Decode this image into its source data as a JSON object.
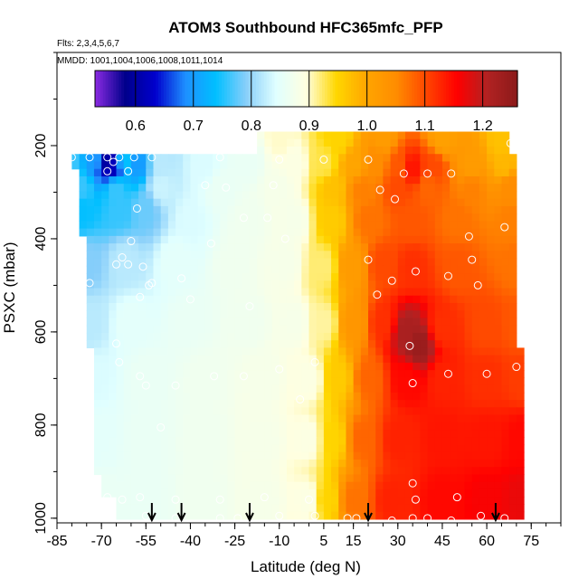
{
  "chart_data": {
    "type": "heatmap",
    "title": "ATOM3 Southbound HFC365mfc_PFP",
    "flights_label": "Flts: 2,3,4,5,6,7",
    "dates_label": "MMDD: 1001,1004,1006,1008,1011,1014",
    "xlabel": "Latitude (deg N)",
    "ylabel": "PSXC (mbar)",
    "xlim": [
      -85,
      85
    ],
    "ylim": [
      1010,
      0
    ],
    "x_ticks": [
      -85,
      -70,
      -55,
      -40,
      -25,
      -10,
      5,
      15,
      30,
      45,
      60,
      75
    ],
    "x_tick_labels": [
      "-85",
      "-70",
      "-55",
      "-40",
      "-25",
      "-10",
      "5",
      "15",
      "30",
      "45",
      "60",
      "75"
    ],
    "y_ticks": [
      200,
      400,
      600,
      800,
      1000
    ],
    "y_tick_labels": [
      "200",
      "400",
      "600",
      "800",
      "1000"
    ],
    "colorbar": {
      "min": 0.53,
      "max": 1.26,
      "ticks": [
        0.6,
        0.7,
        0.8,
        0.9,
        1.0,
        1.1,
        1.2
      ],
      "tick_labels": [
        "0.6",
        "0.7",
        "0.8",
        "0.9",
        "1.0",
        "1.1",
        "1.2"
      ],
      "colors": [
        "#8b2be2",
        "#00008b",
        "#0000cd",
        "#1e90ff",
        "#00bfff",
        "#87cefa",
        "#e0ffff",
        "#ffffe0",
        "#ffd700",
        "#ffa500",
        "#ff8c00",
        "#ff4500",
        "#ff0000",
        "#b22222",
        "#8b1a1a"
      ]
    },
    "pressure_bands": [
      {
        "p_top": 215,
        "p_bottom": 255,
        "lat_min": -79,
        "lat_max": 69
      },
      {
        "p_top": 255,
        "p_bottom": 320,
        "lat_min": -78,
        "lat_max": 70
      },
      {
        "p_top": 320,
        "p_bottom": 400,
        "lat_min": -77,
        "lat_max": 70
      },
      {
        "p_top": 400,
        "p_bottom": 520,
        "lat_min": -75,
        "lat_max": 71
      },
      {
        "p_top": 520,
        "p_bottom": 640,
        "lat_min": -74,
        "lat_max": 71
      },
      {
        "p_top": 640,
        "p_bottom": 760,
        "lat_min": -73,
        "lat_max": 72
      },
      {
        "p_top": 760,
        "p_bottom": 900,
        "lat_min": -72,
        "lat_max": 72
      },
      {
        "p_top": 900,
        "p_bottom": 1010,
        "lat_min": -71,
        "lat_max": 72
      }
    ],
    "upper_band": {
      "p_top": 170,
      "p_bottom": 215,
      "lat_min": -17,
      "lat_max": 68
    },
    "blank_corner": {
      "lat_min": -71,
      "lat_max": -66,
      "p_top": 960,
      "p_bottom": 1010
    },
    "field_points": [
      {
        "lat": -80,
        "p": 230,
        "v": 0.76
      },
      {
        "lat": -73,
        "p": 230,
        "v": 0.7
      },
      {
        "lat": -68,
        "p": 235,
        "v": 0.6
      },
      {
        "lat": -66,
        "p": 245,
        "v": 0.62
      },
      {
        "lat": -62,
        "p": 235,
        "v": 0.74
      },
      {
        "lat": -58,
        "p": 240,
        "v": 0.7
      },
      {
        "lat": -50,
        "p": 240,
        "v": 0.82
      },
      {
        "lat": -35,
        "p": 245,
        "v": 0.84
      },
      {
        "lat": -20,
        "p": 230,
        "v": 0.86
      },
      {
        "lat": -5,
        "p": 240,
        "v": 0.89
      },
      {
        "lat": 5,
        "p": 240,
        "v": 0.93
      },
      {
        "lat": 15,
        "p": 240,
        "v": 1.0
      },
      {
        "lat": 23,
        "p": 235,
        "v": 1.05
      },
      {
        "lat": 30,
        "p": 245,
        "v": 1.09
      },
      {
        "lat": 35,
        "p": 250,
        "v": 1.14
      },
      {
        "lat": 42,
        "p": 245,
        "v": 1.1
      },
      {
        "lat": 55,
        "p": 245,
        "v": 1.02
      },
      {
        "lat": 66,
        "p": 240,
        "v": 0.98
      },
      {
        "lat": -10,
        "p": 185,
        "v": 0.9
      },
      {
        "lat": 10,
        "p": 185,
        "v": 0.95
      },
      {
        "lat": 25,
        "p": 185,
        "v": 1.02
      },
      {
        "lat": 45,
        "p": 185,
        "v": 1.01
      },
      {
        "lat": 65,
        "p": 190,
        "v": 0.97
      },
      {
        "lat": -77,
        "p": 290,
        "v": 0.76
      },
      {
        "lat": -65,
        "p": 295,
        "v": 0.76
      },
      {
        "lat": -50,
        "p": 290,
        "v": 0.83
      },
      {
        "lat": -30,
        "p": 290,
        "v": 0.86
      },
      {
        "lat": -10,
        "p": 290,
        "v": 0.88
      },
      {
        "lat": 8,
        "p": 290,
        "v": 0.97
      },
      {
        "lat": 18,
        "p": 295,
        "v": 1.06
      },
      {
        "lat": 30,
        "p": 290,
        "v": 1.1
      },
      {
        "lat": 40,
        "p": 290,
        "v": 1.08
      },
      {
        "lat": 55,
        "p": 290,
        "v": 1.06
      },
      {
        "lat": 68,
        "p": 290,
        "v": 1.05
      },
      {
        "lat": -77,
        "p": 335,
        "v": 0.74
      },
      {
        "lat": -64,
        "p": 335,
        "v": 0.76
      },
      {
        "lat": -55,
        "p": 335,
        "v": 0.78
      },
      {
        "lat": -40,
        "p": 360,
        "v": 0.84
      },
      {
        "lat": -20,
        "p": 360,
        "v": 0.87
      },
      {
        "lat": -5,
        "p": 360,
        "v": 0.88
      },
      {
        "lat": 8,
        "p": 360,
        "v": 0.96
      },
      {
        "lat": 20,
        "p": 360,
        "v": 1.07
      },
      {
        "lat": 35,
        "p": 360,
        "v": 1.09
      },
      {
        "lat": 50,
        "p": 360,
        "v": 1.07
      },
      {
        "lat": 68,
        "p": 360,
        "v": 1.06
      },
      {
        "lat": -75,
        "p": 450,
        "v": 0.79
      },
      {
        "lat": -62,
        "p": 450,
        "v": 0.82
      },
      {
        "lat": -45,
        "p": 450,
        "v": 0.85
      },
      {
        "lat": -25,
        "p": 450,
        "v": 0.87
      },
      {
        "lat": -8,
        "p": 450,
        "v": 0.88
      },
      {
        "lat": 5,
        "p": 460,
        "v": 0.92
      },
      {
        "lat": 14,
        "p": 460,
        "v": 1.02
      },
      {
        "lat": 25,
        "p": 455,
        "v": 1.1
      },
      {
        "lat": 35,
        "p": 460,
        "v": 1.12
      },
      {
        "lat": 50,
        "p": 460,
        "v": 1.09
      },
      {
        "lat": 70,
        "p": 450,
        "v": 1.07
      },
      {
        "lat": -74,
        "p": 580,
        "v": 0.82
      },
      {
        "lat": -60,
        "p": 580,
        "v": 0.85
      },
      {
        "lat": -40,
        "p": 580,
        "v": 0.86
      },
      {
        "lat": -20,
        "p": 580,
        "v": 0.87
      },
      {
        "lat": -5,
        "p": 580,
        "v": 0.88
      },
      {
        "lat": 5,
        "p": 580,
        "v": 0.91
      },
      {
        "lat": 15,
        "p": 580,
        "v": 1.03
      },
      {
        "lat": 25,
        "p": 580,
        "v": 1.12
      },
      {
        "lat": 33,
        "p": 600,
        "v": 1.22
      },
      {
        "lat": 37,
        "p": 630,
        "v": 1.24
      },
      {
        "lat": 45,
        "p": 590,
        "v": 1.12
      },
      {
        "lat": 60,
        "p": 590,
        "v": 1.1
      },
      {
        "lat": 71,
        "p": 590,
        "v": 1.09
      },
      {
        "lat": -72,
        "p": 700,
        "v": 0.84
      },
      {
        "lat": -55,
        "p": 700,
        "v": 0.86
      },
      {
        "lat": -35,
        "p": 700,
        "v": 0.87
      },
      {
        "lat": -15,
        "p": 700,
        "v": 0.88
      },
      {
        "lat": 0,
        "p": 700,
        "v": 0.89
      },
      {
        "lat": 10,
        "p": 700,
        "v": 0.96
      },
      {
        "lat": 20,
        "p": 700,
        "v": 1.08
      },
      {
        "lat": 33,
        "p": 700,
        "v": 1.15
      },
      {
        "lat": 45,
        "p": 700,
        "v": 1.13
      },
      {
        "lat": 60,
        "p": 700,
        "v": 1.12
      },
      {
        "lat": 72,
        "p": 700,
        "v": 1.11
      },
      {
        "lat": -71,
        "p": 830,
        "v": 0.85
      },
      {
        "lat": -55,
        "p": 830,
        "v": 0.86
      },
      {
        "lat": -35,
        "p": 830,
        "v": 0.87
      },
      {
        "lat": -15,
        "p": 830,
        "v": 0.88
      },
      {
        "lat": 0,
        "p": 830,
        "v": 0.89
      },
      {
        "lat": 8,
        "p": 830,
        "v": 0.95
      },
      {
        "lat": 18,
        "p": 830,
        "v": 1.08
      },
      {
        "lat": 30,
        "p": 830,
        "v": 1.13
      },
      {
        "lat": 45,
        "p": 830,
        "v": 1.14
      },
      {
        "lat": 60,
        "p": 830,
        "v": 1.14
      },
      {
        "lat": 72,
        "p": 830,
        "v": 1.15
      },
      {
        "lat": -70,
        "p": 960,
        "v": 0.86
      },
      {
        "lat": -55,
        "p": 960,
        "v": 0.86
      },
      {
        "lat": -35,
        "p": 960,
        "v": 0.87
      },
      {
        "lat": -15,
        "p": 960,
        "v": 0.88
      },
      {
        "lat": 0,
        "p": 960,
        "v": 0.89
      },
      {
        "lat": 6,
        "p": 960,
        "v": 0.95
      },
      {
        "lat": 15,
        "p": 960,
        "v": 1.07
      },
      {
        "lat": 28,
        "p": 960,
        "v": 1.13
      },
      {
        "lat": 45,
        "p": 960,
        "v": 1.15
      },
      {
        "lat": 60,
        "p": 960,
        "v": 1.16
      },
      {
        "lat": 72,
        "p": 960,
        "v": 1.17
      }
    ],
    "observation_circles": [
      {
        "lat": -80,
        "p": 225
      },
      {
        "lat": -74,
        "p": 225
      },
      {
        "lat": -68,
        "p": 225
      },
      {
        "lat": -66,
        "p": 235
      },
      {
        "lat": -64,
        "p": 225
      },
      {
        "lat": -59,
        "p": 225
      },
      {
        "lat": -53,
        "p": 225
      },
      {
        "lat": -61,
        "p": 255
      },
      {
        "lat": -68,
        "p": 255
      },
      {
        "lat": -30,
        "p": 225
      },
      {
        "lat": -10,
        "p": 230
      },
      {
        "lat": 5,
        "p": 230
      },
      {
        "lat": 20,
        "p": 230
      },
      {
        "lat": 68,
        "p": 195
      },
      {
        "lat": 32,
        "p": 260
      },
      {
        "lat": 40,
        "p": 260
      },
      {
        "lat": 48,
        "p": 260
      },
      {
        "lat": -58,
        "p": 335
      },
      {
        "lat": -35,
        "p": 285
      },
      {
        "lat": -28,
        "p": 290
      },
      {
        "lat": -12,
        "p": 285
      },
      {
        "lat": -14,
        "p": 355
      },
      {
        "lat": -22,
        "p": 355
      },
      {
        "lat": 24,
        "p": 295
      },
      {
        "lat": 29,
        "p": 315
      },
      {
        "lat": -60,
        "p": 405
      },
      {
        "lat": -63,
        "p": 440
      },
      {
        "lat": -65,
        "p": 455
      },
      {
        "lat": -61,
        "p": 455
      },
      {
        "lat": -56,
        "p": 460
      },
      {
        "lat": -54,
        "p": 500
      },
      {
        "lat": -53,
        "p": 495
      },
      {
        "lat": -57,
        "p": 525
      },
      {
        "lat": -74,
        "p": 495
      },
      {
        "lat": -43,
        "p": 485
      },
      {
        "lat": -33,
        "p": 410
      },
      {
        "lat": -8,
        "p": 400
      },
      {
        "lat": 54,
        "p": 395
      },
      {
        "lat": 66,
        "p": 375
      },
      {
        "lat": 20,
        "p": 445
      },
      {
        "lat": 23,
        "p": 520
      },
      {
        "lat": 36,
        "p": 470
      },
      {
        "lat": 47,
        "p": 480
      },
      {
        "lat": 55,
        "p": 445
      },
      {
        "lat": 57,
        "p": 500
      },
      {
        "lat": 28,
        "p": 490
      },
      {
        "lat": -40,
        "p": 530
      },
      {
        "lat": -20,
        "p": 545
      },
      {
        "lat": -65,
        "p": 625
      },
      {
        "lat": 34,
        "p": 630
      },
      {
        "lat": -64,
        "p": 665
      },
      {
        "lat": -57,
        "p": 695
      },
      {
        "lat": -55,
        "p": 715
      },
      {
        "lat": -45,
        "p": 715
      },
      {
        "lat": -32,
        "p": 695
      },
      {
        "lat": -22,
        "p": 695
      },
      {
        "lat": -10,
        "p": 680
      },
      {
        "lat": 2,
        "p": 665
      },
      {
        "lat": 35,
        "p": 710
      },
      {
        "lat": 47,
        "p": 690
      },
      {
        "lat": 60,
        "p": 690
      },
      {
        "lat": 70,
        "p": 675
      },
      {
        "lat": -3,
        "p": 745
      },
      {
        "lat": -50,
        "p": 805
      },
      {
        "lat": -68,
        "p": 955
      },
      {
        "lat": -63,
        "p": 960
      },
      {
        "lat": -57,
        "p": 955
      },
      {
        "lat": -45,
        "p": 960
      },
      {
        "lat": -30,
        "p": 960
      },
      {
        "lat": -15,
        "p": 955
      },
      {
        "lat": 0,
        "p": 960
      },
      {
        "lat": 35,
        "p": 925
      },
      {
        "lat": 36,
        "p": 960
      },
      {
        "lat": 50,
        "p": 955
      },
      {
        "lat": -55,
        "p": 995
      },
      {
        "lat": -45,
        "p": 1000
      },
      {
        "lat": -30,
        "p": 1000
      },
      {
        "lat": -24,
        "p": 1000
      },
      {
        "lat": -10,
        "p": 995
      },
      {
        "lat": 2,
        "p": 995
      },
      {
        "lat": 13,
        "p": 1000
      },
      {
        "lat": 16,
        "p": 1000
      },
      {
        "lat": 28,
        "p": 1005
      },
      {
        "lat": 35,
        "p": 1000
      },
      {
        "lat": 40,
        "p": 1000
      },
      {
        "lat": 48,
        "p": 1005
      },
      {
        "lat": 58,
        "p": 995
      },
      {
        "lat": 66,
        "p": 1000
      }
    ],
    "arrow_latitudes": [
      -53,
      -43,
      -20,
      20,
      63
    ]
  }
}
